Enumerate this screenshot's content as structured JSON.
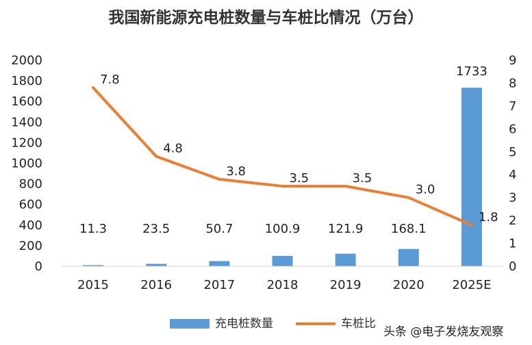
{
  "chart_data": {
    "type": "bar",
    "title": "我国新能源充电桩数量与车桩比情况（万台）",
    "categories": [
      "2015",
      "2016",
      "2017",
      "2018",
      "2019",
      "2020",
      "2025E"
    ],
    "series": [
      {
        "name": "充电桩数量",
        "type": "bar",
        "axis": "left",
        "color": "#5b9bd5",
        "values": [
          11.3,
          23.5,
          50.7,
          100.9,
          121.9,
          168.1,
          1733
        ],
        "labels": [
          "11.3",
          "23.5",
          "50.7",
          "100.9",
          "121.9",
          "168.1",
          "1733"
        ]
      },
      {
        "name": "车桩比",
        "type": "line",
        "axis": "right",
        "color": "#ed7d31",
        "values": [
          7.8,
          4.8,
          3.8,
          3.5,
          3.5,
          3.0,
          1.8
        ],
        "labels": [
          "7.8",
          "4.8",
          "3.8",
          "3.5",
          "3.5",
          "3.0",
          "1.8"
        ]
      }
    ],
    "y_left": {
      "min": 0,
      "max": 2000,
      "ticks": [
        "0",
        "200",
        "400",
        "600",
        "800",
        "1000",
        "1200",
        "1400",
        "1600",
        "1800",
        "2000"
      ]
    },
    "y_right": {
      "min": 0,
      "max": 9,
      "ticks": [
        "0",
        "1",
        "2",
        "3",
        "4",
        "5",
        "6",
        "7",
        "8",
        "9"
      ]
    },
    "grid": false,
    "legend": "bottom"
  },
  "watermark": "头条 @电子发烧友观察"
}
